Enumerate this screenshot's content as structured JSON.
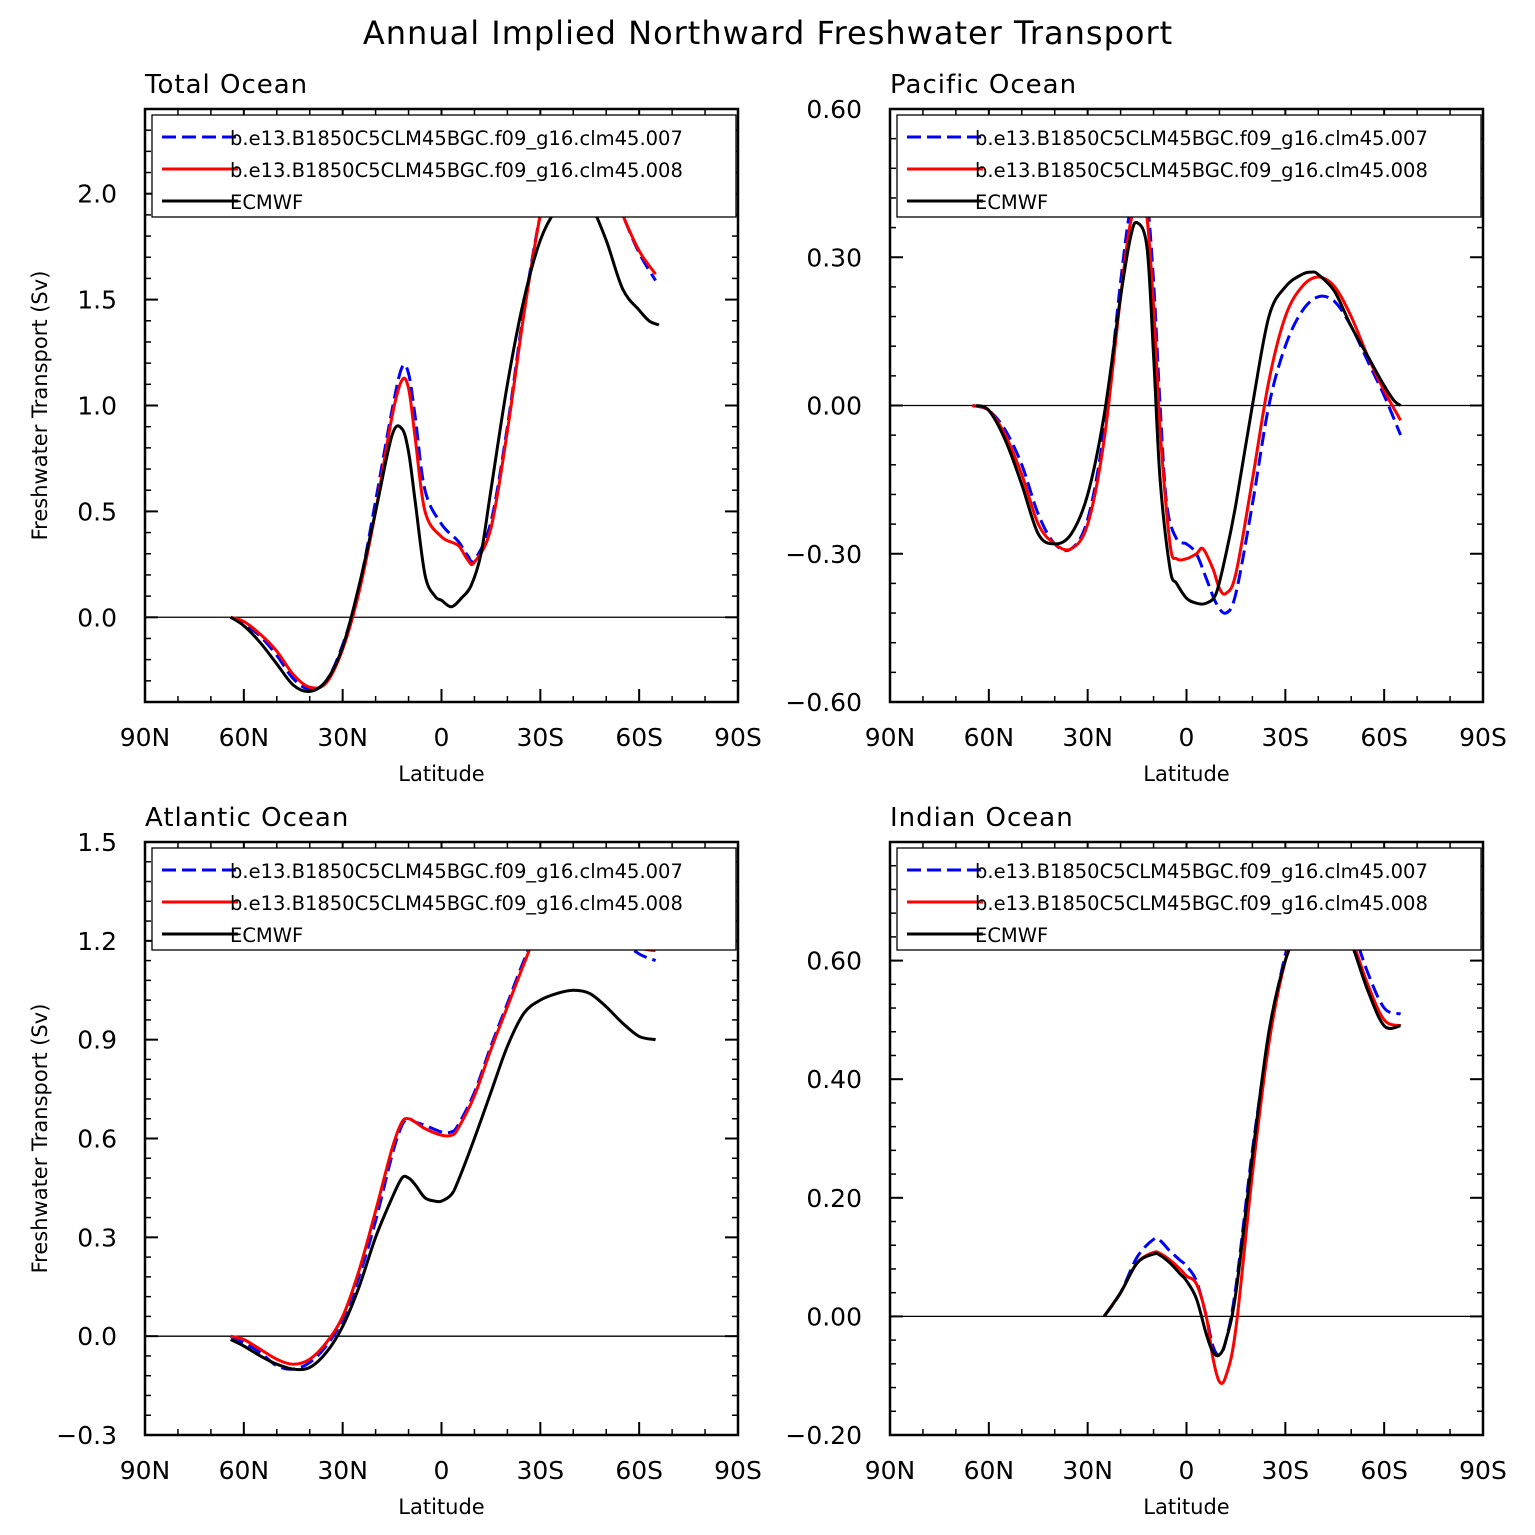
{
  "figure": {
    "title": "Annual Implied Northward Freshwater Transport"
  },
  "legend": {
    "entries": [
      {
        "name": "b.e13.B1850C5CLM45BGC.f09_g16.clm45.007",
        "color": "#0000ff",
        "dash": true
      },
      {
        "name": "b.e13.B1850C5CLM45BGC.f09_g16.clm45.008",
        "color": "#ff0000",
        "dash": false
      },
      {
        "name": "ECMWF",
        "color": "#000000",
        "dash": false
      }
    ]
  },
  "chart_data": [
    {
      "type": "line",
      "title": "Total Ocean",
      "xlabel": "Latitude",
      "ylabel": "Freshwater Transport (Sv)",
      "x_ticks": [
        {
          "v": 90,
          "label": "90N"
        },
        {
          "v": 60,
          "label": "60N"
        },
        {
          "v": 30,
          "label": "30N"
        },
        {
          "v": 0,
          "label": "0"
        },
        {
          "v": -30,
          "label": "30S"
        },
        {
          "v": -60,
          "label": "60S"
        },
        {
          "v": -90,
          "label": "90S"
        }
      ],
      "xlim": [
        90,
        -90
      ],
      "ylim": [
        -0.4,
        2.4
      ],
      "y_ticks": [
        {
          "v": 0,
          "label": "0.0"
        },
        {
          "v": 0.5,
          "label": "0.5"
        },
        {
          "v": 1.0,
          "label": "1.0"
        },
        {
          "v": 1.5,
          "label": "1.5"
        },
        {
          "v": 2.0,
          "label": "2.0"
        }
      ],
      "y_minor_step": 0.1,
      "zero_line": true,
      "legend_position": "top",
      "series": [
        {
          "name": "b.e13.B1850C5CLM45BGC.f09_g16.clm45.007",
          "x": [
            64,
            60,
            55,
            50,
            45,
            40,
            35,
            30,
            25,
            20,
            15,
            12,
            10,
            8,
            5,
            0,
            -5,
            -8,
            -10,
            -15,
            -20,
            -25,
            -30,
            -35,
            -40,
            -45,
            -50,
            -55,
            -60,
            -65
          ],
          "y": [
            0,
            -0.03,
            -0.09,
            -0.18,
            -0.29,
            -0.34,
            -0.3,
            -0.13,
            0.14,
            0.55,
            0.98,
            1.18,
            1.15,
            0.95,
            0.6,
            0.44,
            0.36,
            0.29,
            0.27,
            0.45,
            0.9,
            1.45,
            1.9,
            2.2,
            2.33,
            2.28,
            2.1,
            1.9,
            1.72,
            1.59
          ]
        },
        {
          "name": "b.e13.B1850C5CLM45BGC.f09_g16.clm45.008",
          "x": [
            64,
            60,
            55,
            50,
            45,
            40,
            35,
            30,
            25,
            20,
            15,
            12,
            10,
            8,
            5,
            0,
            -5,
            -8,
            -10,
            -15,
            -20,
            -25,
            -30,
            -35,
            -40,
            -45,
            -50,
            -55,
            -60,
            -65
          ],
          "y": [
            0,
            -0.02,
            -0.08,
            -0.16,
            -0.27,
            -0.33,
            -0.31,
            -0.15,
            0.12,
            0.5,
            0.95,
            1.12,
            1.08,
            0.85,
            0.5,
            0.38,
            0.34,
            0.27,
            0.26,
            0.42,
            0.88,
            1.43,
            1.9,
            2.22,
            2.35,
            2.28,
            2.1,
            1.9,
            1.73,
            1.62
          ]
        },
        {
          "name": "ECMWF",
          "x": [
            64,
            60,
            55,
            50,
            45,
            40,
            35,
            30,
            25,
            20,
            15,
            12,
            10,
            8,
            5,
            2,
            0,
            -3,
            -6,
            -9,
            -12,
            -15,
            -20,
            -25,
            -30,
            -35,
            -40,
            -42,
            -45,
            -50,
            -55,
            -60,
            -63,
            -66
          ],
          "y": [
            0,
            -0.04,
            -0.12,
            -0.22,
            -0.32,
            -0.35,
            -0.3,
            -0.14,
            0.15,
            0.5,
            0.86,
            0.89,
            0.78,
            0.55,
            0.2,
            0.1,
            0.08,
            0.05,
            0.09,
            0.15,
            0.3,
            0.6,
            1.1,
            1.5,
            1.78,
            1.93,
            2.0,
            2.01,
            1.96,
            1.78,
            1.55,
            1.45,
            1.4,
            1.38
          ]
        }
      ]
    },
    {
      "type": "line",
      "title": "Pacific Ocean",
      "xlabel": "Latitude",
      "ylabel": "",
      "x_ticks": [
        {
          "v": 90,
          "label": "90N"
        },
        {
          "v": 60,
          "label": "60N"
        },
        {
          "v": 30,
          "label": "30N"
        },
        {
          "v": 0,
          "label": "0"
        },
        {
          "v": -30,
          "label": "30S"
        },
        {
          "v": -60,
          "label": "60S"
        },
        {
          "v": -90,
          "label": "90S"
        }
      ],
      "xlim": [
        90,
        -90
      ],
      "ylim": [
        -0.6,
        0.6
      ],
      "y_ticks": [
        {
          "v": -0.6,
          "label": "−0.60"
        },
        {
          "v": -0.3,
          "label": "−0.30"
        },
        {
          "v": 0,
          "label": "0.00"
        },
        {
          "v": 0.3,
          "label": "0.30"
        },
        {
          "v": 0.6,
          "label": "0.60"
        }
      ],
      "y_minor_step": 0.06,
      "zero_line": true,
      "legend_position": "top",
      "series": [
        {
          "name": "b.e13.B1850C5CLM45BGC.f09_g16.clm45.007",
          "x": [
            65,
            60,
            55,
            50,
            45,
            40,
            35,
            30,
            25,
            20,
            17,
            14,
            12,
            10,
            8,
            6,
            3,
            0,
            -3,
            -6,
            -9,
            -12,
            -15,
            -20,
            -25,
            -30,
            -35,
            -40,
            -45,
            -50,
            -55,
            -60,
            -65
          ],
          "y": [
            0,
            -0.01,
            -0.05,
            -0.12,
            -0.22,
            -0.28,
            -0.29,
            -0.23,
            -0.05,
            0.25,
            0.4,
            0.46,
            0.42,
            0.25,
            0,
            -0.2,
            -0.27,
            -0.28,
            -0.3,
            -0.35,
            -0.4,
            -0.42,
            -0.38,
            -0.2,
            0.0,
            0.12,
            0.19,
            0.22,
            0.21,
            0.16,
            0.09,
            0.02,
            -0.06
          ]
        },
        {
          "name": "b.e13.B1850C5CLM45BGC.f09_g16.clm45.008",
          "x": [
            65,
            60,
            55,
            50,
            45,
            40,
            35,
            30,
            25,
            20,
            17,
            14,
            12,
            10,
            8,
            5,
            3,
            0,
            -3,
            -5,
            -8,
            -10,
            -12,
            -15,
            -20,
            -25,
            -30,
            -35,
            -40,
            -45,
            -50,
            -55,
            -60,
            -65
          ],
          "y": [
            0,
            -0.01,
            -0.06,
            -0.14,
            -0.24,
            -0.28,
            -0.29,
            -0.24,
            -0.07,
            0.22,
            0.37,
            0.42,
            0.38,
            0.2,
            -0.05,
            -0.28,
            -0.31,
            -0.31,
            -0.3,
            -0.29,
            -0.33,
            -0.37,
            -0.38,
            -0.34,
            -0.15,
            0.05,
            0.18,
            0.24,
            0.26,
            0.24,
            0.18,
            0.1,
            0.03,
            -0.03
          ]
        },
        {
          "name": "ECMWF",
          "x": [
            64,
            60,
            55,
            50,
            45,
            40,
            35,
            30,
            25,
            20,
            17,
            15,
            12,
            10,
            8,
            5,
            3,
            0,
            -3,
            -6,
            -9,
            -12,
            -15,
            -20,
            -25,
            -30,
            -35,
            -38,
            -40,
            -45,
            -50,
            -55,
            -60,
            -63,
            -65
          ],
          "y": [
            0,
            -0.01,
            -0.07,
            -0.16,
            -0.26,
            -0.28,
            -0.26,
            -0.18,
            -0.02,
            0.22,
            0.34,
            0.37,
            0.32,
            0.1,
            -0.15,
            -0.33,
            -0.36,
            -0.39,
            -0.4,
            -0.4,
            -0.38,
            -0.3,
            -0.2,
            0.0,
            0.18,
            0.24,
            0.265,
            0.27,
            0.265,
            0.23,
            0.16,
            0.1,
            0.04,
            0.01,
            0
          ]
        }
      ]
    },
    {
      "type": "line",
      "title": "Atlantic Ocean",
      "xlabel": "Latitude",
      "ylabel": "Freshwater Transport (Sv)",
      "x_ticks": [
        {
          "v": 90,
          "label": "90N"
        },
        {
          "v": 60,
          "label": "60N"
        },
        {
          "v": 30,
          "label": "30N"
        },
        {
          "v": 0,
          "label": "0"
        },
        {
          "v": -30,
          "label": "30S"
        },
        {
          "v": -60,
          "label": "60S"
        },
        {
          "v": -90,
          "label": "90S"
        }
      ],
      "xlim": [
        90,
        -90
      ],
      "ylim": [
        -0.3,
        1.5
      ],
      "y_ticks": [
        {
          "v": -0.3,
          "label": "−0.3"
        },
        {
          "v": 0,
          "label": "0.0"
        },
        {
          "v": 0.3,
          "label": "0.3"
        },
        {
          "v": 0.6,
          "label": "0.6"
        },
        {
          "v": 0.9,
          "label": "0.9"
        },
        {
          "v": 1.2,
          "label": "1.2"
        },
        {
          "v": 1.5,
          "label": "1.5"
        }
      ],
      "y_minor_step": 0.06,
      "zero_line": true,
      "legend_position": "top",
      "series": [
        {
          "name": "b.e13.B1850C5CLM45BGC.f09_g16.clm45.007",
          "x": [
            64,
            60,
            55,
            50,
            45,
            40,
            35,
            30,
            25,
            20,
            15,
            12,
            10,
            8,
            5,
            0,
            -3,
            -5,
            -10,
            -15,
            -20,
            -25,
            -30,
            -35,
            -40,
            -45,
            -50,
            -55,
            -60,
            -65
          ],
          "y": [
            0,
            -0.02,
            -0.05,
            -0.09,
            -0.1,
            -0.08,
            -0.03,
            0.05,
            0.18,
            0.35,
            0.55,
            0.64,
            0.66,
            0.65,
            0.64,
            0.62,
            0.62,
            0.64,
            0.74,
            0.88,
            1.01,
            1.14,
            1.25,
            1.31,
            1.34,
            1.31,
            1.25,
            1.2,
            1.16,
            1.14
          ]
        },
        {
          "name": "b.e13.B1850C5CLM45BGC.f09_g16.clm45.008",
          "x": [
            64,
            60,
            55,
            50,
            45,
            40,
            35,
            30,
            25,
            20,
            15,
            12,
            10,
            8,
            5,
            0,
            -3,
            -5,
            -10,
            -15,
            -20,
            -25,
            -30,
            -35,
            -40,
            -45,
            -50,
            -55,
            -60,
            -65
          ],
          "y": [
            0,
            -0.01,
            -0.04,
            -0.07,
            -0.085,
            -0.07,
            -0.02,
            0.06,
            0.2,
            0.38,
            0.57,
            0.65,
            0.66,
            0.65,
            0.63,
            0.61,
            0.61,
            0.63,
            0.73,
            0.87,
            1.0,
            1.13,
            1.25,
            1.32,
            1.35,
            1.34,
            1.28,
            1.22,
            1.18,
            1.17
          ]
        },
        {
          "name": "ECMWF",
          "x": [
            64,
            60,
            55,
            50,
            45,
            40,
            35,
            30,
            25,
            20,
            15,
            12,
            10,
            8,
            5,
            2,
            0,
            -3,
            -5,
            -10,
            -15,
            -20,
            -25,
            -30,
            -35,
            -40,
            -45,
            -50,
            -55,
            -60,
            -65
          ],
          "y": [
            -0.01,
            -0.03,
            -0.06,
            -0.085,
            -0.1,
            -0.095,
            -0.05,
            0.03,
            0.15,
            0.3,
            0.42,
            0.48,
            0.48,
            0.46,
            0.42,
            0.41,
            0.41,
            0.43,
            0.47,
            0.6,
            0.74,
            0.88,
            0.98,
            1.02,
            1.04,
            1.05,
            1.04,
            1.0,
            0.95,
            0.91,
            0.9
          ]
        }
      ]
    },
    {
      "type": "line",
      "title": "Indian Ocean",
      "xlabel": "Latitude",
      "ylabel": "",
      "x_ticks": [
        {
          "v": 90,
          "label": "90N"
        },
        {
          "v": 60,
          "label": "60N"
        },
        {
          "v": 30,
          "label": "30N"
        },
        {
          "v": 0,
          "label": "0"
        },
        {
          "v": -30,
          "label": "30S"
        },
        {
          "v": -60,
          "label": "60S"
        },
        {
          "v": -90,
          "label": "90S"
        }
      ],
      "xlim": [
        90,
        -90
      ],
      "ylim": [
        -0.2,
        0.8
      ],
      "y_ticks": [
        {
          "v": -0.2,
          "label": "−0.20"
        },
        {
          "v": 0,
          "label": "0.00"
        },
        {
          "v": 0.2,
          "label": "0.20"
        },
        {
          "v": 0.4,
          "label": "0.40"
        },
        {
          "v": 0.6,
          "label": "0.60"
        }
      ],
      "y_minor_step": 0.04,
      "zero_line": true,
      "legend_position": "top",
      "series": [
        {
          "name": "b.e13.B1850C5CLM45BGC.f09_g16.clm45.007",
          "x": [
            25,
            20,
            15,
            10,
            8,
            5,
            2,
            0,
            -3,
            -6,
            -8,
            -10,
            -12,
            -15,
            -20,
            -25,
            -30,
            -35,
            -40,
            -43,
            -45,
            -50,
            -55,
            -60,
            -65
          ],
          "y": [
            0,
            0.04,
            0.1,
            0.13,
            0.128,
            0.11,
            0.095,
            0.085,
            0.06,
            0.0,
            -0.05,
            -0.065,
            -0.04,
            0.05,
            0.28,
            0.47,
            0.61,
            0.7,
            0.74,
            0.75,
            0.73,
            0.66,
            0.58,
            0.52,
            0.51
          ]
        },
        {
          "name": "b.e13.B1850C5CLM45BGC.f09_g16.clm45.008",
          "x": [
            25,
            20,
            15,
            10,
            8,
            5,
            2,
            0,
            -3,
            -6,
            -8,
            -10,
            -12,
            -15,
            -20,
            -25,
            -30,
            -35,
            -40,
            -43,
            -45,
            -50,
            -55,
            -60,
            -65
          ],
          "y": [
            0,
            0.04,
            0.09,
            0.108,
            0.106,
            0.095,
            0.08,
            0.068,
            0.055,
            0.0,
            -0.07,
            -0.11,
            -0.1,
            -0.02,
            0.24,
            0.46,
            0.6,
            0.68,
            0.72,
            0.725,
            0.71,
            0.64,
            0.56,
            0.5,
            0.49
          ]
        },
        {
          "name": "ECMWF",
          "x": [
            25,
            20,
            15,
            10,
            8,
            5,
            2,
            0,
            -3,
            -6,
            -8,
            -10,
            -12,
            -15,
            -20,
            -25,
            -30,
            -35,
            -40,
            -43,
            -45,
            -50,
            -55,
            -60,
            -65
          ],
          "y": [
            0,
            0.04,
            0.09,
            0.105,
            0.103,
            0.09,
            0.072,
            0.06,
            0.03,
            -0.03,
            -0.06,
            -0.065,
            -0.04,
            0.04,
            0.27,
            0.48,
            0.6,
            0.66,
            0.69,
            0.7,
            0.69,
            0.63,
            0.55,
            0.49,
            0.49
          ]
        }
      ]
    }
  ]
}
